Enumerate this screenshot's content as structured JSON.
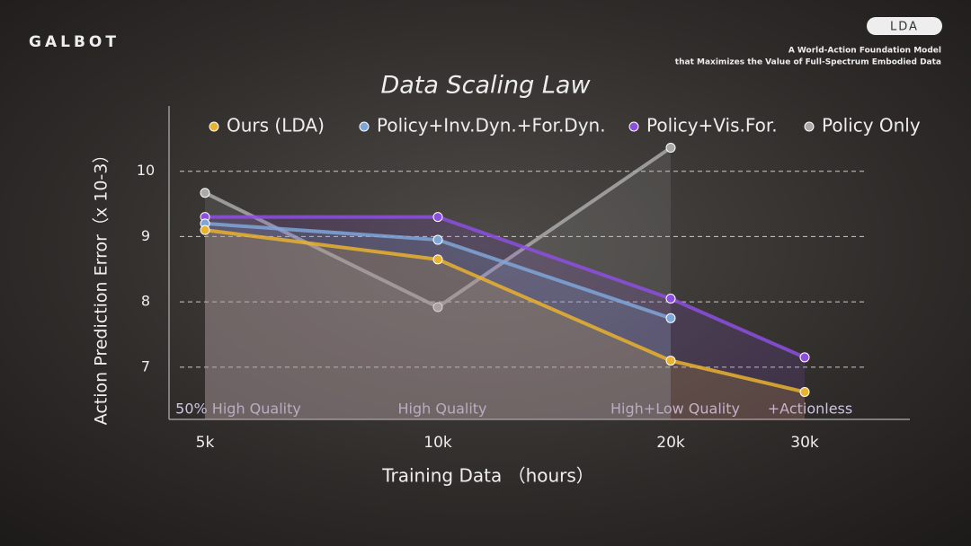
{
  "header": {
    "logo": "GALBOT",
    "badge": "LDA",
    "tagline": [
      "A World-Action Foundation Model",
      "that Maximizes the Value of Full-Spectrum Embodied Data"
    ]
  },
  "chart_data": {
    "type": "line",
    "title": "Data Scaling Law",
    "x_label": "Training Data （hours）",
    "y_label": "Action Prediction Error（x 10-3）",
    "categories": [
      "5k",
      "10k",
      "20k",
      "30k"
    ],
    "annotations": [
      "50% High Quality",
      "High Quality",
      "High+Low Quality",
      "+Actionless"
    ],
    "series": [
      {
        "name": "Ours (LDA)",
        "color": "#e9b22f",
        "values": [
          9.1,
          8.65,
          7.1,
          6.62
        ]
      },
      {
        "name": "Policy+Inv.Dyn.+For.Dyn.",
        "color": "#7fa6d8",
        "values": [
          9.2,
          8.95,
          7.75,
          null
        ]
      },
      {
        "name": "Policy+Vis.For.",
        "color": "#8c4fe0",
        "values": [
          9.3,
          9.3,
          8.05,
          7.15
        ]
      },
      {
        "name": "Policy Only",
        "color": "#a9a9a9",
        "values": [
          9.67,
          7.92,
          10.36,
          null
        ]
      }
    ],
    "ylim": [
      6.2,
      11
    ],
    "yticks": [
      7,
      8,
      9,
      10
    ],
    "grid": true,
    "area": true
  }
}
